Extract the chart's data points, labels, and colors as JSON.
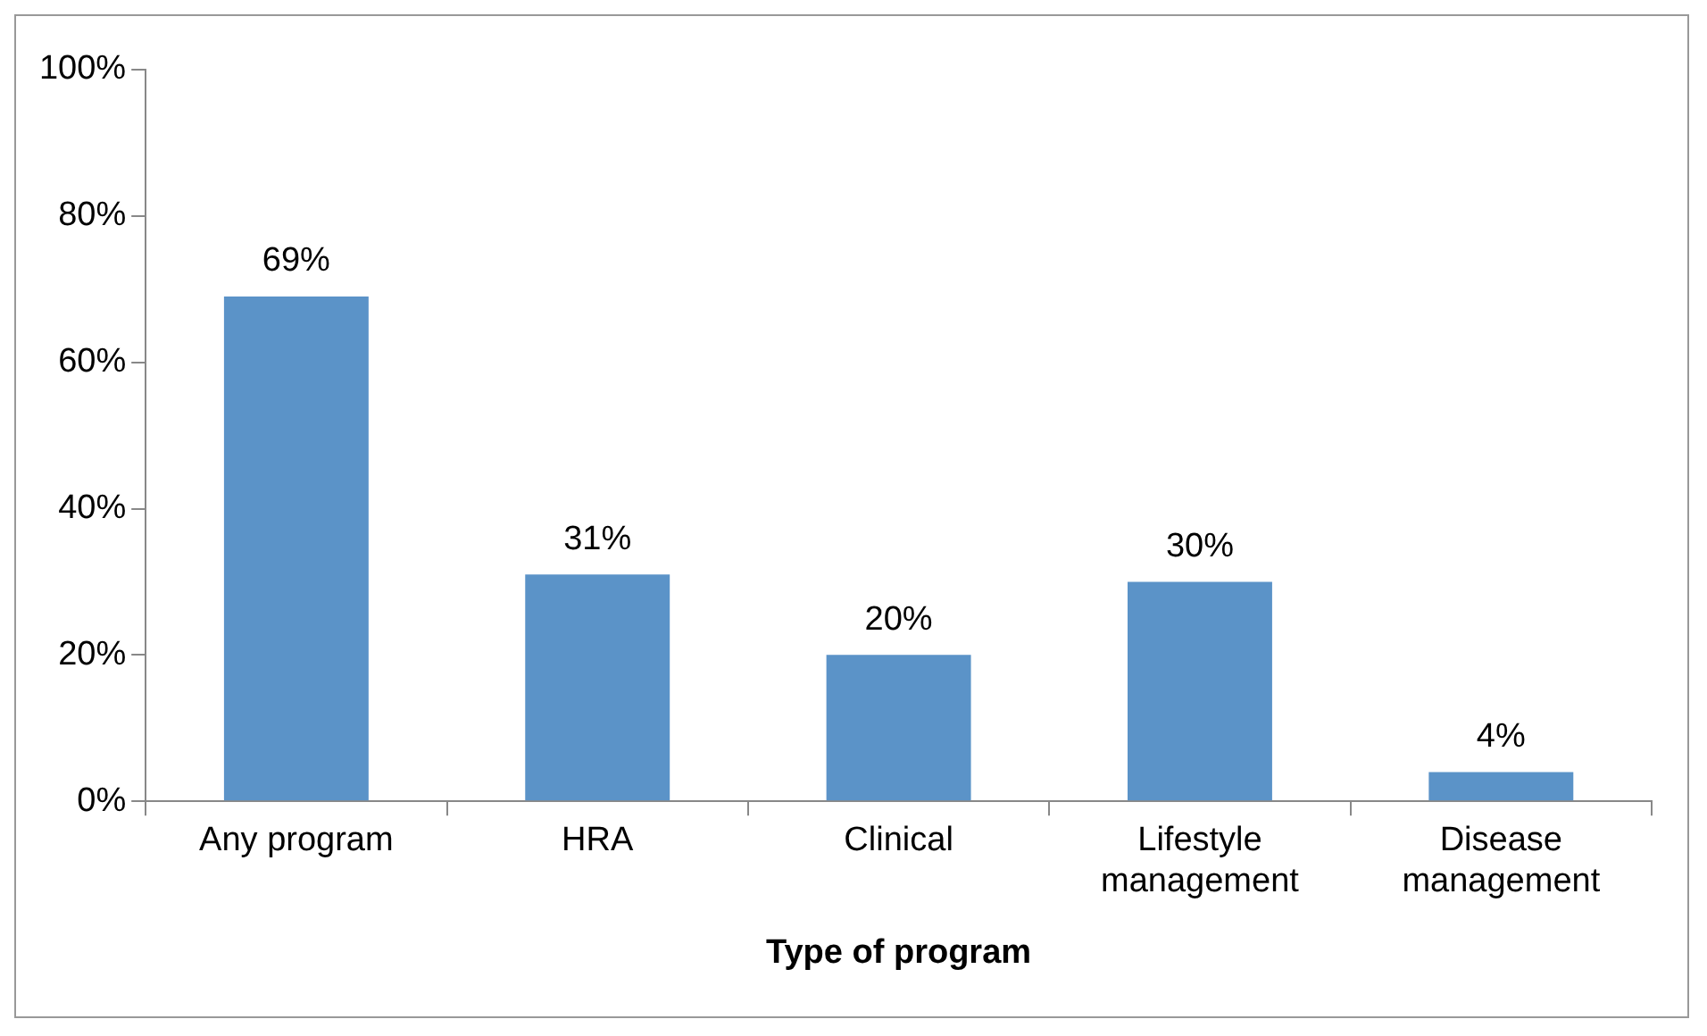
{
  "chart_data": {
    "type": "bar",
    "xlabel": "Type of program",
    "categories": [
      "Any program",
      "HRA",
      "Clinical",
      "Lifestyle management",
      "Disease management"
    ],
    "values": [
      69,
      31,
      20,
      30,
      4
    ],
    "value_labels": [
      "69%",
      "31%",
      "20%",
      "30%",
      "4%"
    ],
    "color": "#5b93c8",
    "ylim": [
      0,
      100
    ],
    "yticks": [
      {
        "value": 0,
        "label": "0%"
      },
      {
        "value": 20,
        "label": "20%"
      },
      {
        "value": 40,
        "label": "40%"
      },
      {
        "value": 60,
        "label": "60%"
      },
      {
        "value": 80,
        "label": "80%"
      },
      {
        "value": 100,
        "label": "100%"
      }
    ],
    "grid": false,
    "legend": false
  }
}
